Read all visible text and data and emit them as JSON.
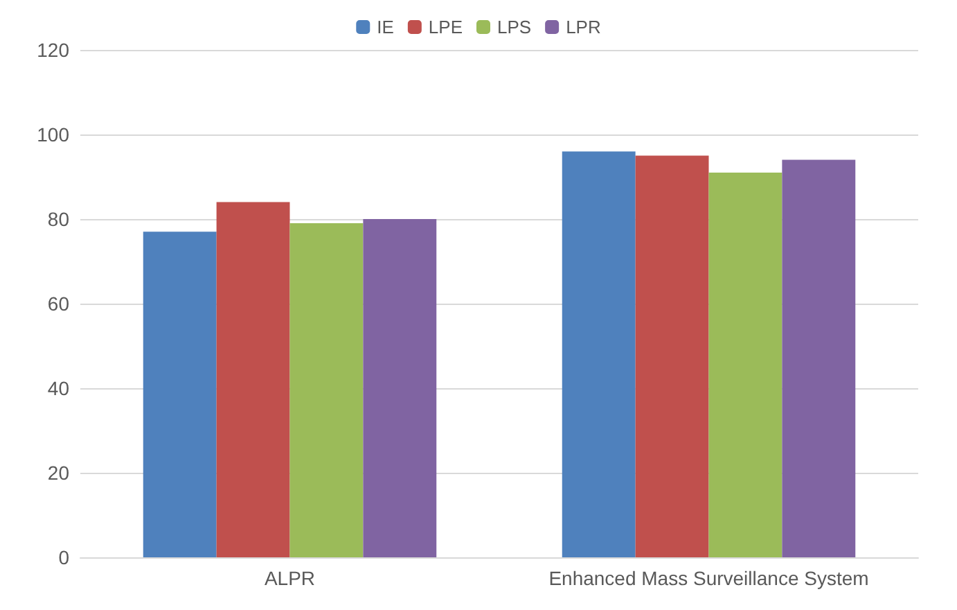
{
  "chart_data": {
    "type": "bar",
    "categories": [
      "ALPR",
      "Enhanced Mass Surveillance System"
    ],
    "series": [
      {
        "name": "IE",
        "color": "#4f81bd",
        "values": [
          77,
          96
        ]
      },
      {
        "name": "LPE",
        "color": "#c0504d",
        "values": [
          84,
          95
        ]
      },
      {
        "name": "LPS",
        "color": "#9bbb59",
        "values": [
          79,
          91
        ]
      },
      {
        "name": "LPR",
        "color": "#8064a2",
        "values": [
          80,
          94
        ]
      }
    ],
    "ylim": [
      0,
      120
    ],
    "yticks": [
      0,
      20,
      40,
      60,
      80,
      100,
      120
    ],
    "grid": "y",
    "legend": "top"
  }
}
